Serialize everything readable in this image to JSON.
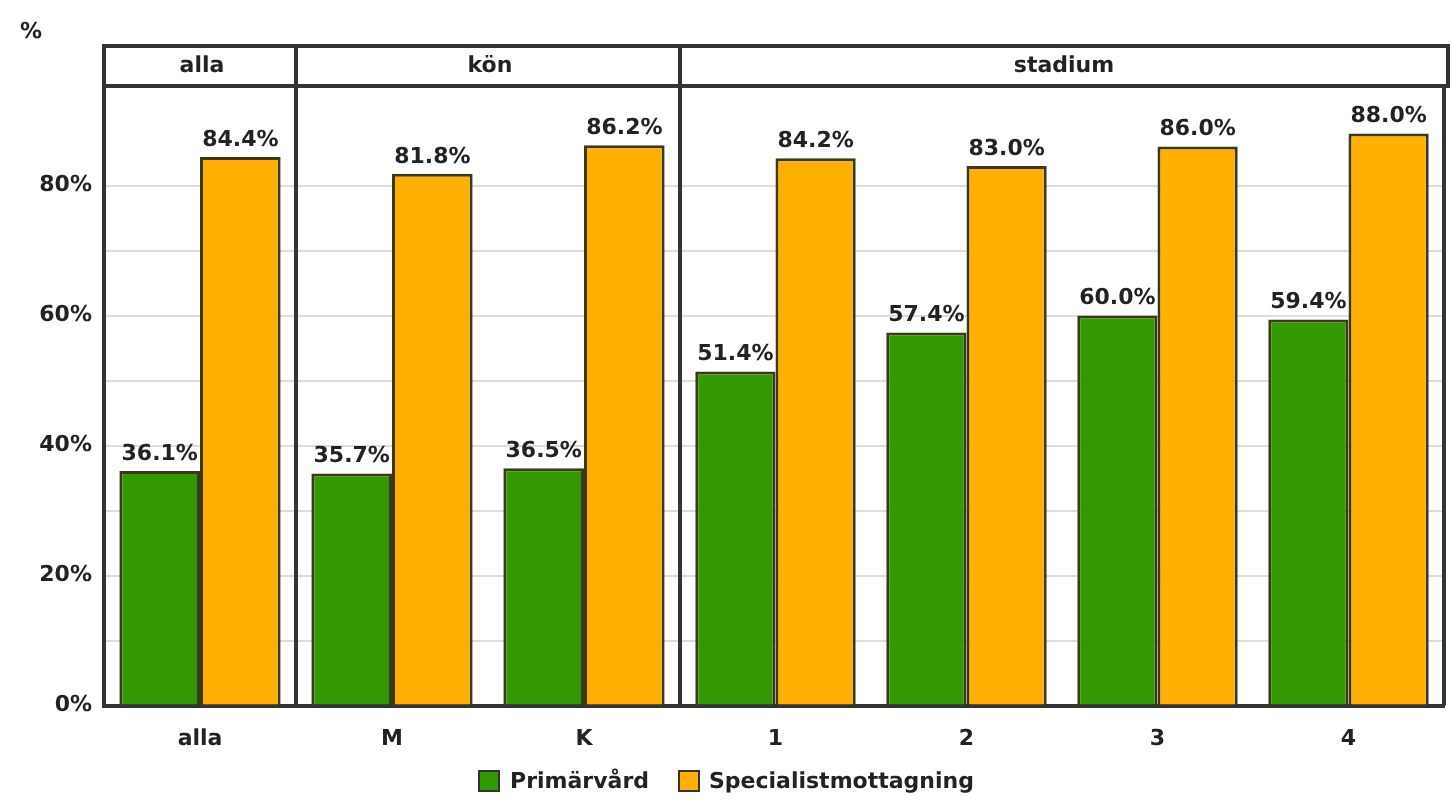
{
  "chart_data": [
    {
      "type": "bar",
      "title": "alla",
      "ylabel": "%",
      "categories": [
        "alla"
      ],
      "series": [
        {
          "color": "#339900",
          "values": [
            36.1
          ],
          "value_labels": [
            "36.1%"
          ]
        },
        {
          "color": "#ffb000",
          "values": [
            84.4
          ],
          "value_labels": [
            "84.4%"
          ]
        }
      ],
      "ylim": [
        0,
        95
      ],
      "yticks": [
        {
          "value": 0,
          "label": "0%"
        },
        {
          "value": 10,
          "label": null
        },
        {
          "value": 20,
          "label": "20%"
        },
        {
          "value": 30,
          "label": null
        },
        {
          "value": 40,
          "label": "40%"
        },
        {
          "value": 50,
          "label": null
        },
        {
          "value": 60,
          "label": "60%"
        },
        {
          "value": 70,
          "label": null
        },
        {
          "value": 80,
          "label": "80%"
        }
      ],
      "grid": "y",
      "legend": false
    },
    {
      "type": "bar",
      "title": "kön",
      "categories": [
        "M",
        "K"
      ],
      "series": [
        {
          "color": "#339900",
          "values": [
            35.7,
            36.5
          ],
          "value_labels": [
            "35.7%",
            "36.5%"
          ]
        },
        {
          "color": "#ffb000",
          "values": [
            81.8,
            86.2
          ],
          "value_labels": [
            "81.8%",
            "86.2%"
          ]
        }
      ],
      "ylim": [
        0,
        95
      ],
      "yticks": [
        {
          "value": 0,
          "label": null
        },
        {
          "value": 10,
          "label": null
        },
        {
          "value": 20,
          "label": null
        },
        {
          "value": 30,
          "label": null
        },
        {
          "value": 40,
          "label": null
        },
        {
          "value": 50,
          "label": null
        },
        {
          "value": 60,
          "label": null
        },
        {
          "value": 70,
          "label": null
        },
        {
          "value": 80,
          "label": null
        }
      ],
      "grid": "y",
      "legend": false,
      "tick_labels": "x"
    },
    {
      "type": "bar",
      "title": "stadium",
      "categories": [
        "1",
        "2",
        "3",
        "4"
      ],
      "series": [
        {
          "name": "Primärvård",
          "color": "#339900",
          "values": [
            51.4,
            57.4,
            60.0,
            59.4
          ],
          "value_labels": [
            "51.4%",
            "57.4%",
            "60.0%",
            "59.4%"
          ]
        },
        {
          "name": "Specialistmottagning",
          "color": "#ffb000",
          "values": [
            84.2,
            83.0,
            86.0,
            88.0
          ],
          "value_labels": [
            "84.2%",
            "83.0%",
            "86.0%",
            "88.0%"
          ]
        }
      ],
      "ylim": [
        0,
        95
      ],
      "yticks": [
        {
          "value": 0,
          "label": null
        },
        {
          "value": 10,
          "label": null
        },
        {
          "value": 20,
          "label": null
        },
        {
          "value": 30,
          "label": null
        },
        {
          "value": 40,
          "label": null
        },
        {
          "value": 50,
          "label": null
        },
        {
          "value": 60,
          "label": null
        },
        {
          "value": 70,
          "label": null
        },
        {
          "value": 80,
          "label": null
        }
      ],
      "grid": "y",
      "legend": "bottom",
      "tick_labels": "x"
    }
  ]
}
